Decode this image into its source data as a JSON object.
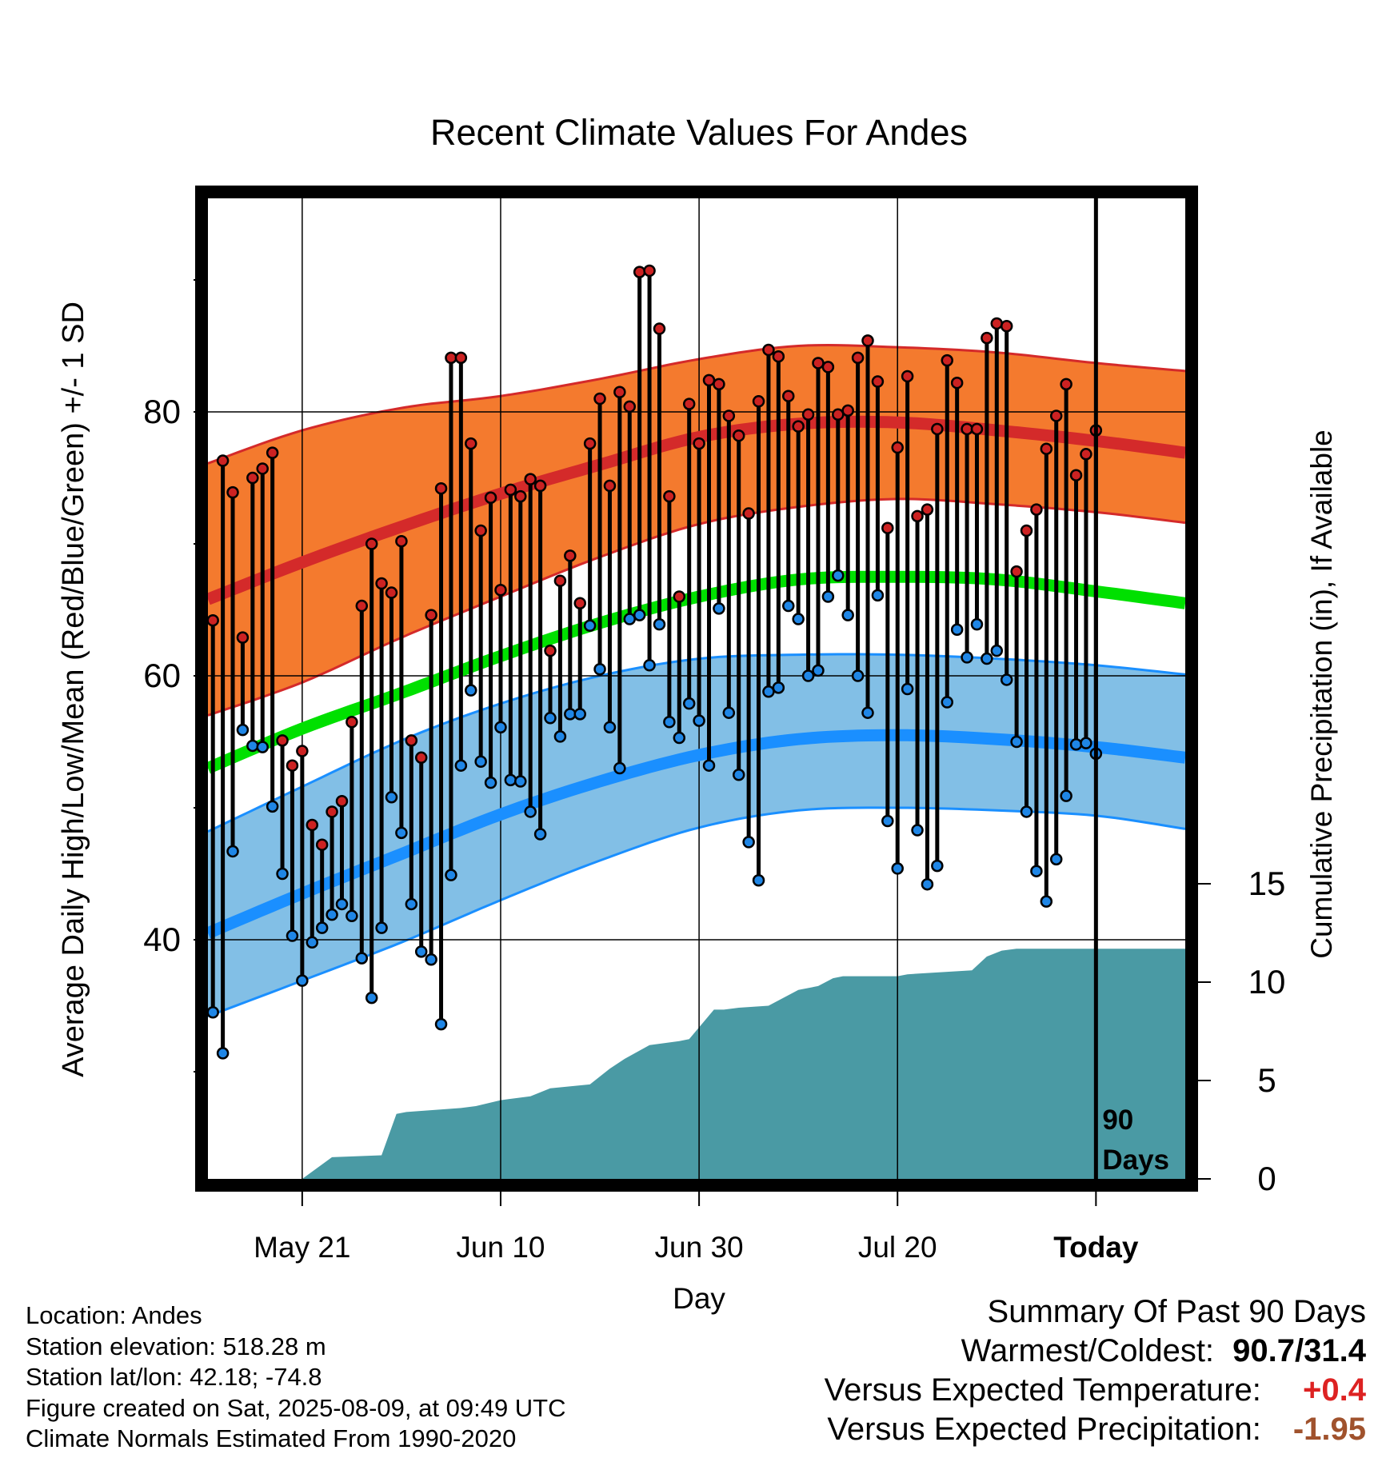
{
  "chart_data": {
    "type": "line",
    "title": "Recent Climate Values For Andes",
    "xlabel": "Day",
    "ylabel": "Average Daily High/Low/Mean (Red/Blue/Green) +/- 1 SD",
    "y2label": "Cumulative Precipitation (in), If Available",
    "ylim": [
      26,
      96
    ],
    "y2lim": [
      0,
      90
    ],
    "x_range_days": [
      -89.5,
      9
    ],
    "x_ticks": [
      {
        "day": -80,
        "label": "May 21"
      },
      {
        "day": -60,
        "label": "Jun 10"
      },
      {
        "day": -40,
        "label": "Jun 30"
      },
      {
        "day": -20,
        "label": "Jul 20"
      },
      {
        "day": 0,
        "label": "Today"
      }
    ],
    "y_ticks": [
      40,
      60,
      80
    ],
    "y_minor_ticks": [
      30,
      50,
      70,
      90
    ],
    "y2_ticks": [
      0,
      5,
      10,
      15
    ],
    "today_marker_label": [
      "90",
      "Days"
    ],
    "grid": true,
    "colors": {
      "high_band": "#f47a2e",
      "high_mean": "#d42a2a",
      "low_band": "#82bfe6",
      "low_mean": "#1a8fff",
      "mean": "#00e000",
      "precip": "#4a9aa4",
      "high_point": "#cc2222",
      "low_point": "#1f86e6"
    },
    "normals": {
      "days": [
        -89.5,
        -80,
        -70,
        -60,
        -50,
        -40,
        -30,
        -20,
        -10,
        0,
        9
      ],
      "high_mean": [
        65.8,
        68.6,
        71.3,
        73.8,
        76.0,
        78.1,
        79.1,
        79.2,
        78.6,
        77.8,
        76.9
      ],
      "high_upper": [
        76.1,
        78.6,
        80.3,
        81.2,
        82.5,
        84.0,
        85.0,
        84.9,
        84.5,
        83.7,
        83.1
      ],
      "high_lower": [
        57.0,
        59.5,
        62.9,
        66.0,
        69.0,
        71.5,
        72.8,
        73.4,
        73.0,
        72.4,
        71.6
      ],
      "mean": [
        53.0,
        56.0,
        58.7,
        61.5,
        64.0,
        66.0,
        67.3,
        67.5,
        67.3,
        66.4,
        65.5
      ],
      "low_mean": [
        40.5,
        43.5,
        46.5,
        49.5,
        52.0,
        54.0,
        55.2,
        55.5,
        55.2,
        54.6,
        53.8
      ],
      "low_upper": [
        48.2,
        51.6,
        55.1,
        57.9,
        60.0,
        61.3,
        61.6,
        61.6,
        61.3,
        60.8,
        60.1
      ],
      "low_lower": [
        34.2,
        36.9,
        39.8,
        43.0,
        46.0,
        48.5,
        49.8,
        50.0,
        49.8,
        49.4,
        48.4
      ]
    },
    "series": [
      {
        "name": "High",
        "values": [
          64.2,
          76.3,
          73.9,
          62.9,
          75.0,
          75.7,
          76.9,
          55.1,
          53.2,
          54.3,
          48.7,
          47.2,
          49.7,
          50.5,
          56.5,
          65.3,
          70.0,
          67.0,
          66.3,
          70.2,
          55.1,
          53.8,
          64.6,
          74.2,
          84.1,
          84.1,
          77.6,
          71.0,
          73.5,
          66.5,
          74.1,
          73.6,
          74.9,
          74.4,
          61.9,
          67.2,
          69.1,
          65.5,
          77.6,
          81.0,
          74.4,
          81.5,
          80.4,
          90.6,
          90.7,
          86.3,
          73.6,
          66.0,
          80.6,
          77.6,
          82.4,
          82.1,
          79.7,
          78.2,
          72.3,
          80.8,
          84.7,
          84.2,
          81.2,
          78.9,
          79.8,
          83.7,
          83.4,
          79.8,
          80.1,
          84.1,
          85.4,
          82.3,
          71.2,
          77.3,
          82.7,
          72.1,
          72.6,
          78.7,
          83.9,
          82.2,
          78.7,
          78.7,
          85.6,
          86.7,
          86.5,
          67.9,
          71.0,
          72.6,
          77.2,
          79.7,
          82.1,
          75.2,
          76.8,
          78.6
        ]
      },
      {
        "name": "Low",
        "values": [
          34.5,
          31.4,
          46.7,
          55.9,
          54.7,
          54.6,
          50.1,
          45.0,
          40.3,
          36.9,
          39.8,
          40.9,
          41.9,
          42.7,
          41.8,
          38.6,
          35.6,
          40.9,
          50.8,
          48.1,
          42.7,
          39.1,
          38.5,
          33.6,
          44.9,
          53.2,
          58.9,
          53.5,
          51.9,
          56.1,
          52.1,
          52.0,
          49.7,
          48.0,
          56.8,
          55.4,
          57.1,
          57.1,
          63.8,
          60.5,
          56.1,
          53.0,
          64.3,
          64.6,
          60.8,
          63.9,
          56.5,
          55.3,
          57.9,
          56.6,
          53.2,
          65.1,
          57.2,
          52.5,
          47.4,
          44.5,
          58.8,
          59.1,
          65.3,
          64.3,
          60.0,
          60.4,
          66.0,
          67.6,
          64.6,
          60.0,
          57.2,
          66.1,
          49.0,
          45.4,
          59.0,
          48.3,
          44.2,
          45.6,
          58.0,
          63.5,
          61.4,
          63.9,
          61.3,
          61.9,
          59.7,
          55.0,
          49.7,
          45.2,
          42.9,
          46.1,
          50.9,
          54.8,
          54.9,
          54.1
        ]
      }
    ],
    "precip": {
      "days": [
        -80,
        -77,
        -72,
        -70.5,
        -69.5,
        -64,
        -62.5,
        -60,
        -57,
        -55,
        -51,
        -49,
        -47.5,
        -45,
        -42,
        -41,
        -39,
        -38.5,
        -37.5,
        -36,
        -33,
        -30,
        -28,
        -26.5,
        -25.5,
        -22,
        -20,
        -19,
        -12.5,
        -11,
        -9.5,
        -8,
        -5,
        0,
        9
      ],
      "values": [
        0,
        1.1,
        1.2,
        3.3,
        3.4,
        3.6,
        3.7,
        4.0,
        4.2,
        4.6,
        4.8,
        5.6,
        6.1,
        6.8,
        7.0,
        7.1,
        8.3,
        8.6,
        8.6,
        8.7,
        8.8,
        9.6,
        9.8,
        10.2,
        10.3,
        10.3,
        10.3,
        10.4,
        10.6,
        11.3,
        11.6,
        11.7,
        11.7,
        11.7,
        11.7
      ]
    }
  },
  "footer": {
    "location": "Location: Andes",
    "elevation": "Station elevation: 518.28 m",
    "latlon": "Station lat/lon: 42.18; -74.8",
    "created": "Figure created on Sat, 2025-08-09, at 09:49 UTC",
    "normals": "Climate Normals Estimated From 1990-2020"
  },
  "summary": {
    "heading": "Summary Of Past 90 Days",
    "warmest_label": "Warmest/Coldest:",
    "warmest_value": "90.7/31.4",
    "temp_label": "Versus Expected Temperature:",
    "temp_value": "+0.4",
    "temp_color": "#dd2222",
    "precip_label": "Versus Expected Precipitation:",
    "precip_value": "-1.95",
    "precip_color": "#a0522d"
  }
}
